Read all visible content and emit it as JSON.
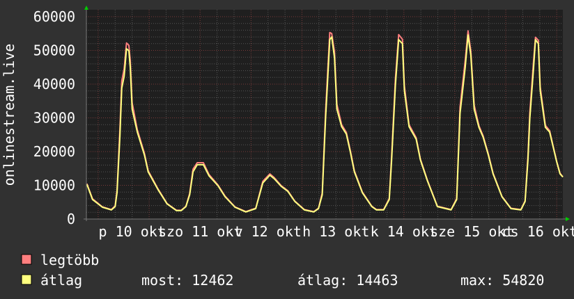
{
  "chart_data": {
    "type": "line",
    "title": "",
    "ylabel": "onlinestream.live",
    "xlabel": "",
    "xlim": [
      "10-09 19:50",
      "10-16 20:10"
    ],
    "ylim": [
      0,
      60000
    ],
    "grid": true,
    "y_ticks": [
      0,
      10000,
      20000,
      30000,
      40000,
      50000,
      60000
    ],
    "y_tick_labels": [
      "0",
      "10000",
      "20000",
      "30000",
      "40000",
      "50000",
      "60000"
    ],
    "x_ticks": [
      "10-10 12:00",
      "10-11 12:00",
      "10-12 12:00",
      "10-13 12:00",
      "10-14 12:00",
      "10-15 12:00",
      "10-16 12:00"
    ],
    "x_tick_labels": [
      "p 10 okt",
      "szo 11 okt",
      "v 12 okt",
      "h 13 okt",
      "k 14 okt",
      "sze 15 okt",
      "cs 16 okt"
    ],
    "x": [
      "10-09 20:00",
      "10-09 22:00",
      "10-10 01:30",
      "10-10 04:40",
      "10-10 06:00",
      "10-10 06:40",
      "10-10 07:40",
      "10-10 08:20",
      "10-10 09:10",
      "10-10 10:00",
      "10-10 10:50",
      "10-10 11:20",
      "10-10 12:00",
      "10-10 13:50",
      "10-10 16:20",
      "10-10 17:40",
      "10-10 21:10",
      "10-11 00:20",
      "10-11 03:40",
      "10-11 05:20",
      "10-11 07:00",
      "10-11 08:20",
      "10-11 09:30",
      "10-11 11:00",
      "10-11 13:10",
      "10-11 15:10",
      "10-11 18:20",
      "10-11 20:50",
      "10-12 00:20",
      "10-12 04:10",
      "10-12 07:40",
      "10-12 10:10",
      "10-12 12:40",
      "10-12 14:10",
      "10-12 16:40",
      "10-12 19:00",
      "10-12 21:30",
      "10-13 00:50",
      "10-13 04:10",
      "10-13 05:50",
      "10-13 07:10",
      "10-13 08:20",
      "10-13 09:00",
      "10-13 09:50",
      "10-13 10:30",
      "10-13 11:30",
      "10-13 12:20",
      "10-13 14:00",
      "10-13 15:40",
      "10-13 17:10",
      "10-13 18:30",
      "10-13 21:20",
      "10-14 00:40",
      "10-14 02:20",
      "10-14 04:50",
      "10-14 06:50",
      "10-14 07:40",
      "10-14 09:00",
      "10-14 10:10",
      "10-14 11:30",
      "10-14 12:10",
      "10-14 13:50",
      "10-14 16:20",
      "10-14 17:50",
      "10-14 20:20",
      "10-14 23:50",
      "10-15 04:40",
      "10-15 06:40",
      "10-15 07:50",
      "10-15 09:40",
      "10-15 10:40",
      "10-15 11:40",
      "10-15 12:50",
      "10-15 14:30",
      "10-15 16:00",
      "10-15 17:50",
      "10-15 19:30",
      "10-15 22:40",
      "10-16 01:50",
      "10-16 05:20",
      "10-16 06:50",
      "10-16 07:50",
      "10-16 08:30",
      "10-16 09:50",
      "10-16 10:30",
      "10-16 11:30",
      "10-16 12:10",
      "10-16 14:00",
      "10-16 15:30",
      "10-16 16:40",
      "10-16 18:00",
      "10-16 19:10",
      "10-16 20:10"
    ],
    "series": [
      {
        "name": "legtöbb",
        "color": "#ff7f7f",
        "values": [
          10500,
          6000,
          3600,
          2800,
          3900,
          8500,
          26500,
          41000,
          44500,
          52200,
          51500,
          47000,
          34500,
          26500,
          19500,
          14300,
          8900,
          4600,
          2600,
          2600,
          3800,
          7600,
          14800,
          16700,
          16700,
          13200,
          10100,
          6800,
          3600,
          2200,
          3200,
          11200,
          13400,
          12300,
          9900,
          8400,
          5300,
          2800,
          2200,
          3200,
          7800,
          31800,
          42500,
          55300,
          55000,
          49500,
          34000,
          28000,
          25700,
          20000,
          14300,
          8000,
          3800,
          2800,
          2800,
          6100,
          18800,
          41500,
          54700,
          53300,
          39500,
          28000,
          24100,
          17800,
          11500,
          3800,
          2800,
          6100,
          33200,
          47000,
          55800,
          49800,
          33800,
          27700,
          24700,
          19300,
          13600,
          6700,
          3200,
          2800,
          5400,
          18800,
          31600,
          47000,
          53900,
          53000,
          39200,
          27800,
          26200,
          21900,
          17100,
          13600,
          12500
        ]
      },
      {
        "name": "átlag",
        "color": "#ffff7f",
        "values": [
          10300,
          5800,
          3500,
          2700,
          3700,
          7800,
          24300,
          38800,
          42300,
          50500,
          49900,
          44900,
          32600,
          25800,
          19000,
          14000,
          8700,
          4500,
          2500,
          2500,
          3700,
          7200,
          14000,
          16100,
          16100,
          12800,
          9900,
          6600,
          3500,
          2100,
          3100,
          10700,
          13000,
          12000,
          9700,
          8200,
          5200,
          2700,
          2100,
          3100,
          7200,
          29900,
          40200,
          53200,
          54000,
          47800,
          32600,
          27400,
          25200,
          19600,
          14000,
          7800,
          3700,
          2700,
          2700,
          5800,
          17500,
          39600,
          53200,
          52000,
          38100,
          27400,
          23700,
          17500,
          11300,
          3700,
          2700,
          5800,
          31300,
          44900,
          54600,
          48500,
          32600,
          27200,
          24300,
          19000,
          13400,
          6600,
          3100,
          2700,
          5200,
          17500,
          29900,
          44900,
          53200,
          52000,
          38100,
          27200,
          25800,
          21600,
          16900,
          13400,
          12462
        ]
      }
    ]
  },
  "legend": {
    "items": [
      {
        "label": "legtöbb",
        "color": "#ff7f7f"
      },
      {
        "label": "átlag",
        "color": "#ffff7f"
      }
    ],
    "stats": {
      "current": "most: 12462",
      "average": "átlag: 14463",
      "maximum": "max: 54820"
    }
  },
  "colors": {
    "background": "#313131",
    "plot_background": "#1f1f1f",
    "minor_grid": "#555555",
    "major_grid": "#7a3a3a",
    "axis_arrow": "#00cc00"
  }
}
